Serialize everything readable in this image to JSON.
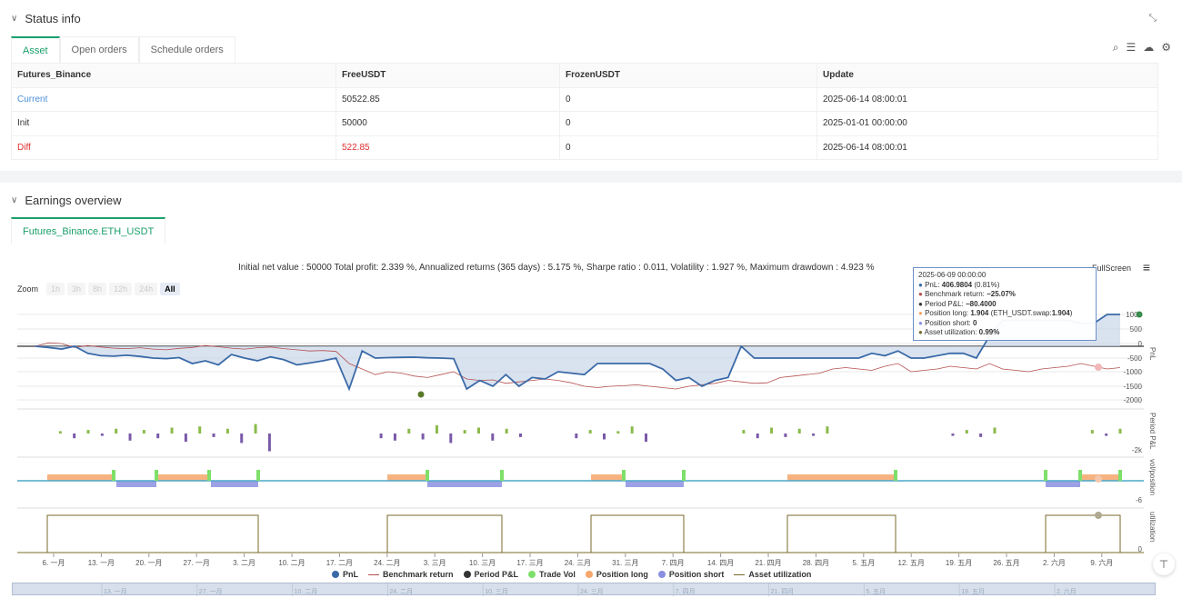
{
  "status": {
    "title": "Status info",
    "tabs": [
      "Asset",
      "Open orders",
      "Schedule orders"
    ],
    "table": {
      "headers": [
        "Futures_Binance",
        "FreeUSDT",
        "FrozenUSDT",
        "Update"
      ],
      "rows": [
        {
          "label": "Current",
          "free": "50522.85",
          "frozen": "0",
          "update": "2025-06-14 08:00:01"
        },
        {
          "label": "Init",
          "free": "50000",
          "frozen": "0",
          "update": "2025-01-01 00:00:00"
        },
        {
          "label": "Diff",
          "free": "522.85",
          "frozen": "0",
          "update": "2025-06-14 08:00:01"
        }
      ]
    },
    "colors": {
      "current": "#4a90d9",
      "diff": "#e03030",
      "accent": "#1a9f6b"
    }
  },
  "earnings": {
    "title": "Earnings overview",
    "tab": "Futures_Binance.ETH_USDT",
    "summary": "Initial net value : 50000 Total profit: 2.339 %, Annualized returns (365 days) : 5.175 %, Sharpe ratio : 0.011, Volatility : 1.927 %, Maximum drawdown : 4.923 %",
    "fullscreen": "FullScreen",
    "zoom": {
      "label": "Zoom",
      "buttons": [
        "1h",
        "3h",
        "8h",
        "12h",
        "24h",
        "All"
      ],
      "active": "All"
    },
    "tooltip": {
      "date": "2025-06-09 00:00:00",
      "pnl_label": "PnL: ",
      "pnl_value": "406.9804",
      "pnl_pct": " (0.81%)",
      "bench_label": "Benchmark return: ",
      "bench_value": "−25.07%",
      "period_label": "Period P&L: ",
      "period_value": "−80.4000",
      "long_label": "Position long: ",
      "long_value": "1.904",
      "long_extra": " (ETH_USDT.swap:",
      "long_extra_value": "1.904",
      "long_close": ")",
      "short_label": "Position short: ",
      "short_value": "0",
      "util_label": "Asset utilization: ",
      "util_value": "0.99%"
    },
    "axis_labels": {
      "pnl": "PnL",
      "period": "Period P&L",
      "vol": "vol/position",
      "util": "utilization"
    },
    "x_ticks": [
      "6. 一月",
      "13. 一月",
      "20. 一月",
      "27. 一月",
      "3. 二月",
      "10. 二月",
      "17. 二月",
      "24. 二月",
      "3. 三月",
      "10. 三月",
      "17. 三月",
      "24. 三月",
      "31. 三月",
      "7. 四月",
      "14. 四月",
      "21. 四月",
      "28. 四月",
      "5. 五月",
      "12. 五月",
      "19. 五月",
      "26. 五月",
      "2. 六月",
      "9. 六月"
    ],
    "nav_ticks": [
      "13. 一月",
      "27. 一月",
      "10. 二月",
      "24. 二月",
      "10. 三月",
      "24. 三月",
      "7. 四月",
      "21. 四月",
      "5. 五月",
      "19. 五月",
      "2. 六月"
    ],
    "legend": [
      "PnL",
      "Benchmark return",
      "Period P&L",
      "Trade Vol",
      "Position long",
      "Position short",
      "Asset utilization"
    ]
  },
  "chart_data": {
    "type": "line",
    "title": "",
    "y_ticks_pnl": [
      "1000",
      "500",
      "0",
      "-500",
      "-1000",
      "-1500",
      "-2000"
    ],
    "y_ticks_period": [
      "-2k"
    ],
    "y_ticks_vol": [
      "-6"
    ],
    "y_ticks_util": [
      "0"
    ],
    "pnl_range": [
      -2000,
      1100
    ],
    "series": [
      {
        "name": "PnL",
        "color": "#3a6aa8",
        "values": [
          0,
          -50,
          -120,
          0,
          -300,
          -400,
          -420,
          -380,
          -430,
          -500,
          -520,
          -480,
          -700,
          -600,
          -750,
          -350,
          -500,
          -600,
          -450,
          -560,
          -750,
          -680,
          -600,
          -500,
          -1600,
          -200,
          -500,
          -480,
          -470,
          -460,
          -490,
          -500,
          -520,
          -1600,
          -1300,
          -1500,
          -1100,
          -1500,
          -1200,
          -1250,
          -1000,
          -1050,
          -1100,
          -700,
          -700,
          -700,
          -700,
          -700,
          -900,
          -1300,
          -1200,
          -1500,
          -1300,
          -1200,
          0,
          -500,
          -500,
          -500,
          -500,
          -500,
          -500,
          -500,
          -500,
          -500,
          -300,
          -400,
          -200,
          -500,
          -500,
          -400,
          -300,
          -300,
          -500,
          300,
          800,
          800,
          800,
          800,
          800,
          800,
          700,
          700,
          1000,
          1000
        ]
      },
      {
        "name": "Benchmark return",
        "color": "#b55050",
        "values": [
          0,
          100,
          80,
          -50,
          20,
          -30,
          -80,
          -100,
          -60,
          -120,
          -150,
          -90,
          -50,
          20,
          -20,
          -80,
          -120,
          -60,
          -30,
          -100,
          -150,
          -200,
          -180,
          -220,
          -700,
          -900,
          -1100,
          -1000,
          -1050,
          -1150,
          -1200,
          -1100,
          -1000,
          -1250,
          -1300,
          -1280,
          -1400,
          -1350,
          -1300,
          -1250,
          -1300,
          -1380,
          -1500,
          -1550,
          -1500,
          -1480,
          -1450,
          -1500,
          -1550,
          -1600,
          -1500,
          -1450,
          -1400,
          -1300,
          -1350,
          -1400,
          -1380,
          -1200,
          -1150,
          -1100,
          -1050,
          -900,
          -850,
          -900,
          -950,
          -800,
          -700,
          -1000,
          -950,
          -900,
          -800,
          -850,
          -900,
          -700,
          -900,
          -950,
          -1000,
          -900,
          -850,
          -800,
          -700,
          -800,
          -900,
          -850
        ]
      }
    ],
    "period_bars": [
      0,
      20,
      -40,
      30,
      -20,
      40,
      -60,
      30,
      -40,
      50,
      -70,
      60,
      -30,
      40,
      -80,
      80,
      -150,
      0,
      0,
      0,
      0,
      0,
      0,
      0,
      -40,
      -60,
      40,
      -50,
      70,
      -80,
      30,
      50,
      -60,
      40,
      -30,
      0,
      0,
      0,
      -40,
      30,
      -50,
      20,
      60,
      -70,
      0,
      0,
      0,
      0,
      0,
      0,
      30,
      -40,
      50,
      -30,
      40,
      -20,
      60,
      0,
      0,
      0,
      0,
      0,
      0,
      0,
      0,
      -20,
      30,
      -30,
      50,
      0,
      0,
      0,
      0,
      0,
      0,
      30,
      -20,
      40
    ],
    "position_long": [
      [
        52,
        125
      ],
      [
        172,
        230
      ],
      [
        426,
        470
      ],
      [
        650,
        686
      ],
      [
        866,
        985
      ],
      [
        1188,
        1232
      ]
    ],
    "position_short": [
      [
        128,
        172
      ],
      [
        232,
        284
      ],
      [
        470,
        552
      ],
      [
        688,
        752
      ],
      [
        1150,
        1188
      ]
    ],
    "util_segments": [
      [
        52,
        284
      ],
      [
        426,
        552
      ],
      [
        650,
        752
      ],
      [
        866,
        985
      ],
      [
        1150,
        1232
      ]
    ]
  }
}
